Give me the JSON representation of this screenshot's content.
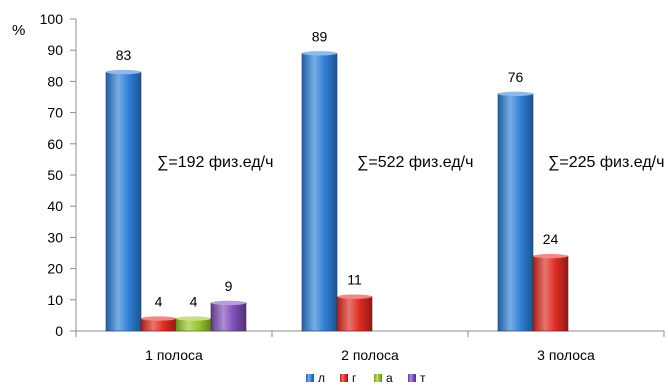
{
  "chart_data": {
    "type": "bar",
    "title": "",
    "xlabel": "",
    "ylabel": "%",
    "ylim": [
      0,
      100
    ],
    "yticks": [
      0,
      10,
      20,
      30,
      40,
      50,
      60,
      70,
      80,
      90,
      100
    ],
    "grid": false,
    "legend_position": "bottom",
    "categories": [
      "1 полоса",
      "2 полоса",
      "3 полоса"
    ],
    "series": [
      {
        "name": "л",
        "color": "#2f7fd8",
        "values": [
          83,
          89,
          76
        ]
      },
      {
        "name": "г",
        "color": "#dd2b22",
        "values": [
          4,
          11,
          24
        ]
      },
      {
        "name": "а",
        "color": "#98c62b",
        "values": [
          4,
          null,
          null
        ]
      },
      {
        "name": "т",
        "color": "#7e4fb8",
        "values": [
          9,
          null,
          null
        ]
      }
    ],
    "annotations": [
      "∑=192 физ.ед/ч",
      "∑=522 физ.ед/ч",
      "∑=225 физ.ед/ч"
    ]
  }
}
